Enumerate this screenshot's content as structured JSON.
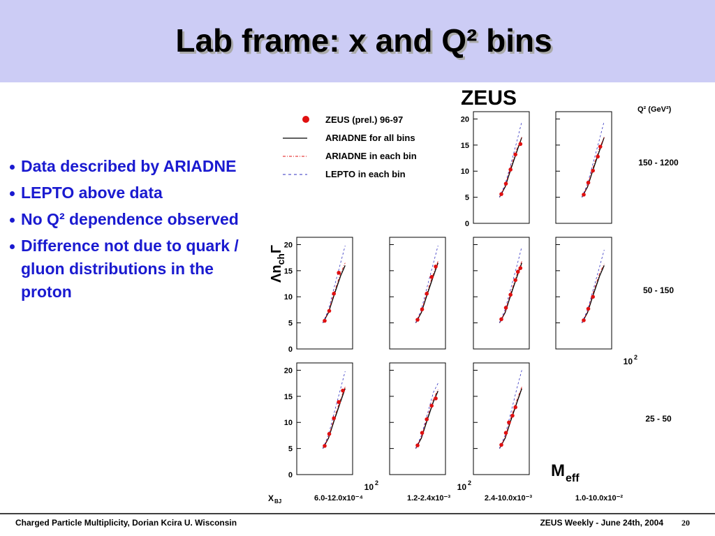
{
  "header": {
    "title": "Lab frame: x and Q² bins"
  },
  "bullets": [
    "Data described by ARIADNE",
    "LEPTO above data",
    "No Q² dependence observed",
    "Difference not due to quark / gluon distributions in the proton"
  ],
  "footer": {
    "left": "Charged Particle Multiplicity, Dorian Kcira U. Wisconsin",
    "right": "ZEUS Weekly - June 24th, 2004",
    "page": "20"
  },
  "chart_data": {
    "type": "scatter",
    "experiment": "ZEUS",
    "ylabel": {
      "main": "Λn",
      "sub": "ch",
      "end": "Γ"
    },
    "xlabel": {
      "main": "M",
      "sub": "eff"
    },
    "xbj_label": {
      "main": "X",
      "sub": "BJ"
    },
    "q2_label": "Q² (GeV²)",
    "xscale": "log",
    "xlim": [
      4,
      100
    ],
    "xticks": [
      {
        "value": 100,
        "label": "10",
        "sup": "2"
      }
    ],
    "ylim": [
      0,
      20.6
    ],
    "yticks": [
      0,
      5,
      10,
      15,
      20
    ],
    "series": [
      {
        "name": "ZEUS (prel.) 96-97",
        "color": "#e01010"
      },
      {
        "name": "ARIADNE for all bins",
        "color": "#000000"
      },
      {
        "name": "ARIADNE in each bin",
        "color": "#e01010"
      },
      {
        "name": "LEPTO in each bin",
        "color": "#3030c0"
      }
    ],
    "q2_bins": [
      "150 - 1200",
      "50 - 150",
      "25 - 50"
    ],
    "x_bins": [
      "6.0-12.0x10⁻⁴",
      "1.2-2.4x10⁻³",
      "2.4-10.0x10⁻³",
      "1.0-10.0x10⁻²"
    ],
    "curve_x": [
      18,
      25,
      35,
      50,
      65
    ],
    "panels": [
      [
        null,
        null,
        {
          "x": [
            20,
            26,
            34,
            45,
            60
          ],
          "values": [
            5.6,
            7.6,
            10.3,
            13.2,
            15.2
          ],
          "curves": [
            [
              5,
              7,
              10.5,
              14,
              16.5
            ],
            [
              5,
              7.2,
              11,
              14.5,
              16.5
            ],
            [
              5,
              7.5,
              11.5,
              16,
              19.5
            ]
          ]
        },
        {
          "x": [
            20,
            26,
            34,
            45,
            52
          ],
          "values": [
            5.5,
            7.8,
            10.1,
            12.8,
            14.7
          ],
          "curves": [
            [
              5,
              7,
              10.5,
              14,
              16.5
            ],
            [
              5,
              7.2,
              11,
              14.5,
              16.5
            ],
            [
              5,
              7.6,
              11.8,
              16.2,
              19.6
            ]
          ]
        }
      ],
      [
        {
          "x": [
            20,
            26,
            34,
            45
          ],
          "values": [
            5.4,
            7.3,
            10.6,
            14.6
          ],
          "curves": [
            [
              5,
              7,
              10.5,
              14,
              16
            ],
            [
              5,
              7.2,
              11,
              14.5,
              16.5
            ],
            [
              5,
              7.5,
              12,
              16.5,
              19.8
            ]
          ]
        },
        {
          "x": [
            20,
            26,
            34,
            45,
            57
          ],
          "values": [
            5.6,
            7.6,
            10.6,
            13.8,
            15.8
          ],
          "curves": [
            [
              5,
              7,
              10.5,
              14,
              16.5
            ],
            [
              5,
              7.2,
              11,
              14.5,
              16.8
            ],
            [
              5,
              7.6,
              12,
              16.5,
              19.8
            ]
          ]
        },
        {
          "x": [
            20,
            26,
            34,
            45,
            52,
            60
          ],
          "values": [
            5.7,
            7.9,
            10.4,
            13.2,
            14.8,
            15.5
          ],
          "curves": [
            [
              5,
              7,
              10.5,
              14,
              16.5
            ],
            [
              5,
              7.2,
              11,
              14.5,
              16.8
            ],
            [
              5,
              7.6,
              11.8,
              16.2,
              19.6
            ]
          ]
        },
        {
          "x": [
            20,
            26,
            34
          ],
          "values": [
            5.5,
            7.7,
            10.0
          ],
          "curves": [
            [
              5,
              7,
              10.5,
              14,
              16
            ],
            [
              5,
              7.2,
              11,
              14.5,
              16.3
            ],
            [
              5,
              7.5,
              11.5,
              15.8,
              19
            ]
          ]
        }
      ],
      [
        {
          "x": [
            20,
            26,
            34,
            45,
            57
          ],
          "values": [
            5.5,
            7.8,
            10.8,
            13.9,
            16.1
          ],
          "curves": [
            [
              5,
              7,
              10.5,
              14,
              16.5
            ],
            [
              5,
              7.2,
              11,
              14.5,
              16.8
            ],
            [
              5,
              7.6,
              12,
              16.5,
              19.8
            ]
          ]
        },
        {
          "x": [
            20,
            26,
            34,
            45,
            57
          ],
          "values": [
            5.6,
            8.0,
            10.6,
            13.2,
            14.6
          ],
          "curves": [
            [
              5,
              7,
              10.5,
              14,
              16
            ],
            [
              5,
              7.2,
              11,
              14.5,
              16.3
            ],
            [
              5,
              7.5,
              11.5,
              15.8,
              17.5
            ]
          ]
        },
        {
          "x": [
            20,
            26,
            31,
            38,
            45
          ],
          "values": [
            5.7,
            8.0,
            10.0,
            11.3,
            12.9
          ],
          "curves": [
            [
              5,
              7,
              10.5,
              14,
              16.5
            ],
            [
              5,
              7.2,
              11,
              14.5,
              16.8
            ],
            [
              5,
              7.6,
              12,
              16.8,
              20
            ]
          ]
        },
        null
      ]
    ]
  }
}
